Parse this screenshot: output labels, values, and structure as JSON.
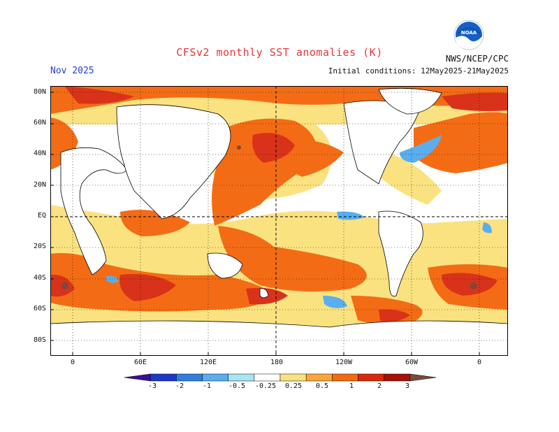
{
  "header": {
    "title": "CFSv2 monthly SST anomalies (K)",
    "month": "Nov 2025",
    "initial_conditions": "Initial conditions: 12May2025-21May2025",
    "agency": "NWS/NCEP/CPC",
    "logo_text": "NOAA"
  },
  "map": {
    "lat_labels": [
      "80N",
      "60N",
      "40N",
      "20N",
      "EQ",
      "20S",
      "40S",
      "60S",
      "80S"
    ],
    "lon_labels": [
      "0",
      "60E",
      "120E",
      "180",
      "120W",
      "60W",
      "0"
    ]
  },
  "colorbar": {
    "labels": [
      "-3",
      "-2",
      "-1",
      "-0.5",
      "-0.25",
      "0.25",
      "0.5",
      "1",
      "2",
      "3"
    ],
    "colors": [
      "#3a0f98",
      "#1d39c8",
      "#2f7fe0",
      "#5aaeee",
      "#a7e4f4",
      "#ffffff",
      "#fbe280",
      "#fba63a",
      "#f26b10",
      "#d82a0c",
      "#a41208",
      "#7a4a3a"
    ]
  },
  "colors": {
    "title": "#e8363a",
    "month": "#1f3fd6",
    "weak_warm": "#fbe280",
    "warm": "#f36c15",
    "strong_warm": "#d8331a",
    "cool": "#5aaeee",
    "land": "#ffffff"
  }
}
